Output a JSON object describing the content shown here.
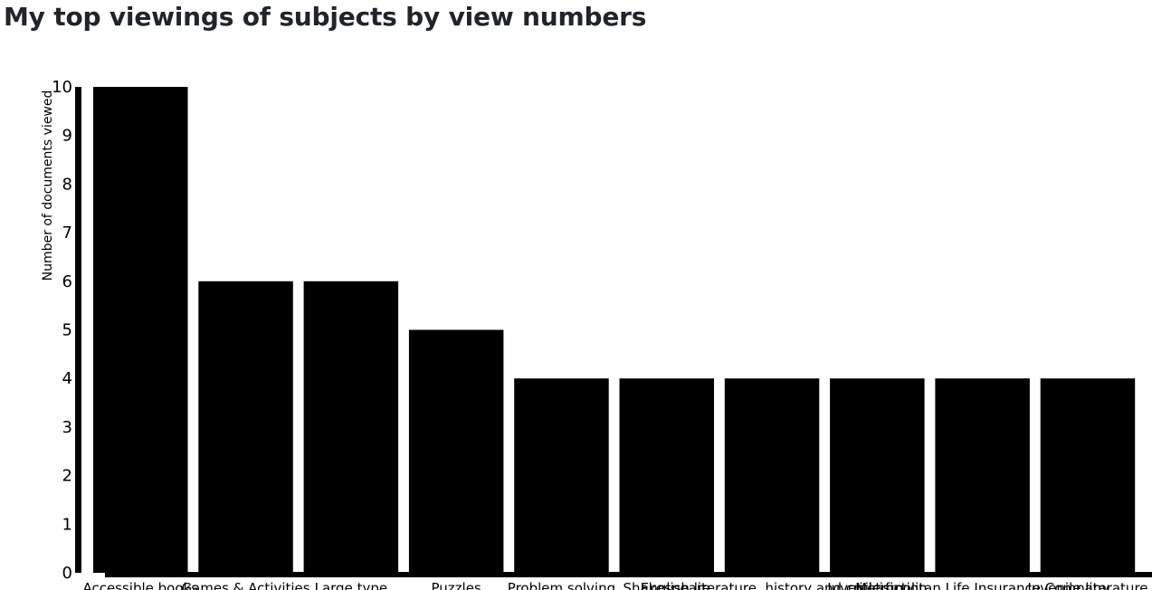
{
  "page": {
    "title": "My top viewings of subjects by view numbers"
  },
  "chart_data": {
    "type": "bar",
    "title": "",
    "xlabel": "",
    "ylabel": "Number of documents viewed",
    "ylim": [
      0,
      10
    ],
    "yticks": [
      0,
      1,
      2,
      3,
      4,
      5,
      6,
      7,
      8,
      9,
      10
    ],
    "grid": false,
    "legend": "none",
    "bar_color": "#000000",
    "categories": [
      "Accessible books",
      "Games & Activities",
      "Large type",
      "Puzzles",
      "Problem solving",
      "Shakespeare",
      "English literature, history and criticism",
      "Juvenile fiction",
      "Metropolitan Life Insurance Company",
      "Juvenile literature"
    ],
    "values": [
      10,
      6,
      6,
      5,
      4,
      4,
      4,
      4,
      4,
      4
    ]
  }
}
